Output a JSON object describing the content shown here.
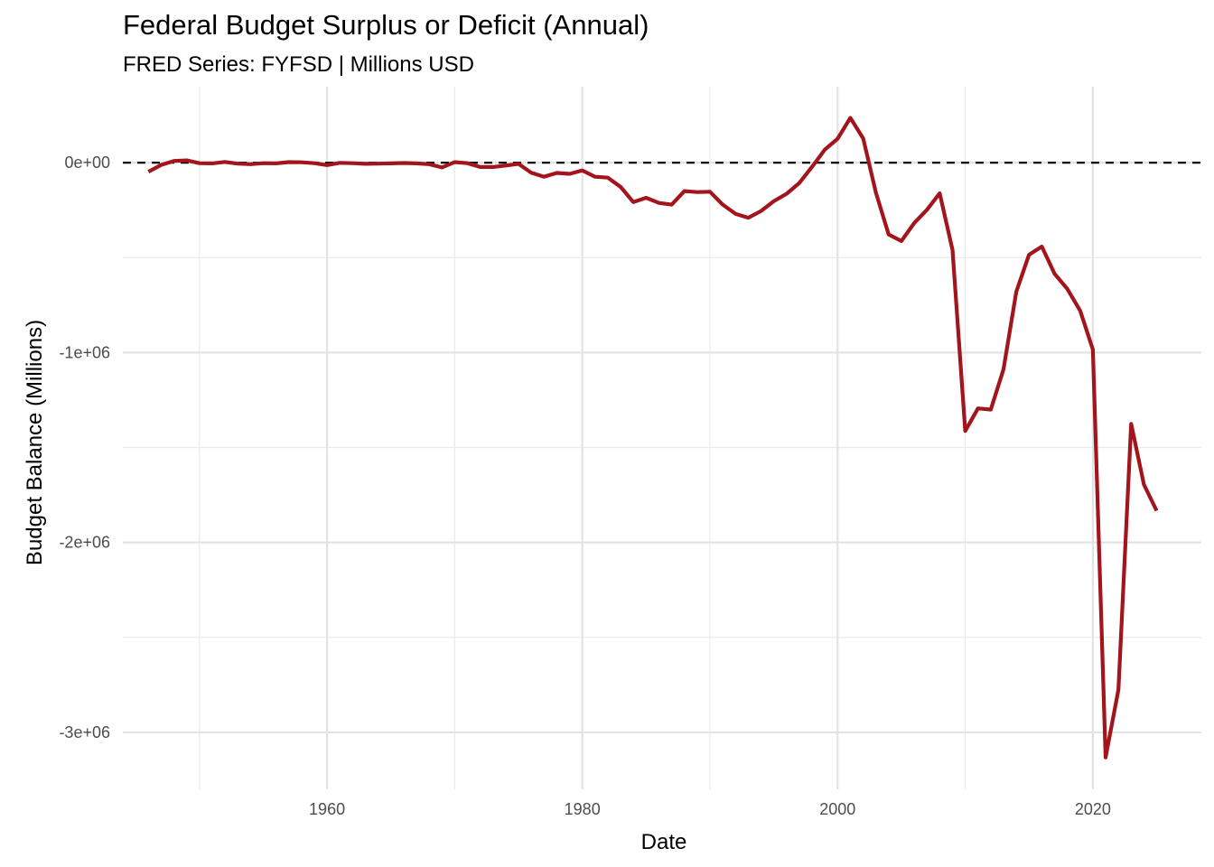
{
  "chart_data": {
    "type": "line",
    "title": "Federal Budget Surplus or Deficit (Annual)",
    "subtitle": "FRED Series: FYFSD | Millions USD",
    "xlabel": "Date",
    "ylabel": "Budget Balance (Millions)",
    "xlim": [
      1944,
      2028.5
    ],
    "ylim": [
      -3300000,
      400000
    ],
    "x_ticks": [
      1960,
      1980,
      2000,
      2020
    ],
    "x_tick_labels": [
      "1960",
      "1980",
      "2000",
      "2020"
    ],
    "y_ticks": [
      0,
      -1000000,
      -2000000,
      -3000000
    ],
    "y_tick_labels": [
      "0e+00",
      "-1e+06",
      "-2e+06",
      "-3e+06"
    ],
    "grid": true,
    "reference_line": {
      "y": 0,
      "style": "dashed",
      "color": "#000000"
    },
    "line_color": "#a3151c",
    "series": [
      {
        "x": [
          1946,
          1947,
          1948,
          1949,
          1950,
          1951,
          1952,
          1953,
          1954,
          1955,
          1956,
          1957,
          1958,
          1959,
          1960,
          1961,
          1962,
          1963,
          1964,
          1965,
          1966,
          1967,
          1968,
          1969,
          1970,
          1971,
          1972,
          1973,
          1974,
          1975,
          1976,
          1977,
          1978,
          1979,
          1980,
          1981,
          1982,
          1983,
          1984,
          1985,
          1986,
          1987,
          1988,
          1989,
          1990,
          1991,
          1992,
          1993,
          1994,
          1995,
          1996,
          1997,
          1998,
          1999,
          2000,
          2001,
          2002,
          2003,
          2004,
          2005,
          2006,
          2007,
          2008,
          2009,
          2010,
          2011,
          2012,
          2013,
          2014,
          2015,
          2016,
          2017,
          2018,
          2019,
          2020,
          2021,
          2022,
          2023,
          2024,
          2025
        ],
        "y": [
          -48000,
          -12000,
          9000,
          12000,
          -3000,
          -4000,
          4000,
          -5000,
          -8000,
          -3000,
          -4000,
          3000,
          2000,
          -3000,
          -13000,
          -1000,
          -3000,
          -6000,
          -5000,
          -4000,
          -2000,
          -4000,
          -8000,
          -25000,
          3000,
          -3000,
          -23000,
          -23000,
          -15000,
          -6000,
          -53000,
          -74000,
          -54000,
          -59000,
          -41000,
          -74000,
          -79000,
          -128000,
          -208000,
          -185000,
          -212000,
          -221000,
          -150000,
          -155000,
          -153000,
          -221000,
          -269000,
          -290000,
          -255000,
          -203000,
          -164000,
          -107000,
          -22000,
          69000,
          126000,
          236000,
          128000,
          -158000,
          -378000,
          -413000,
          -318000,
          -248000,
          -161000,
          -459000,
          -1413000,
          -1294000,
          -1300000,
          -1087000,
          -680000,
          -485000,
          -442000,
          -585000,
          -665000,
          -779000,
          -984000,
          -3132000,
          -2775000,
          -1376000,
          -1695000,
          -1833000
        ]
      }
    ]
  }
}
